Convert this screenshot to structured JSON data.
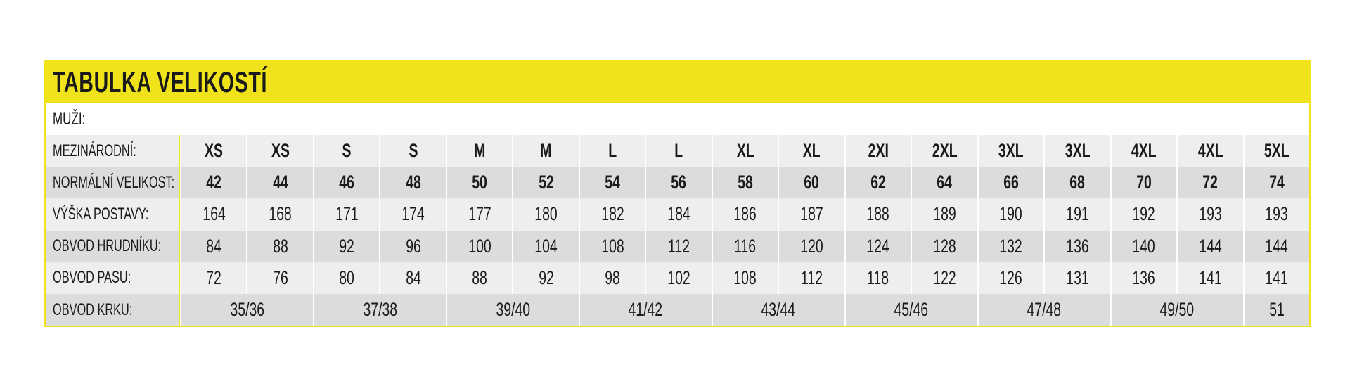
{
  "title": "TABULKA VELIKOSTÍ",
  "section": "MUŽI:",
  "colors": {
    "accent": "#f0e31c",
    "row_light": "#edeeee",
    "row_dark": "#dcdcdc"
  },
  "rows": [
    {
      "label": "MEZINÁRODNÍ:",
      "bold": true,
      "shade": "light",
      "span": 1,
      "values": [
        "XS",
        "XS",
        "S",
        "S",
        "M",
        "M",
        "L",
        "L",
        "XL",
        "XL",
        "2XI",
        "2XL",
        "3XL",
        "3XL",
        "4XL",
        "4XL",
        "5XL"
      ]
    },
    {
      "label": "NORMÁLNÍ VELIKOST:",
      "bold": true,
      "shade": "dark",
      "span": 1,
      "values": [
        "42",
        "44",
        "46",
        "48",
        "50",
        "52",
        "54",
        "56",
        "58",
        "60",
        "62",
        "64",
        "66",
        "68",
        "70",
        "72",
        "74"
      ]
    },
    {
      "label": "VÝŠKA POSTAVY:",
      "bold": false,
      "shade": "light",
      "span": 1,
      "values": [
        "164",
        "168",
        "171",
        "174",
        "177",
        "180",
        "182",
        "184",
        "186",
        "187",
        "188",
        "189",
        "190",
        "191",
        "192",
        "193",
        "193"
      ]
    },
    {
      "label": "OBVOD HRUDNÍKU:",
      "bold": false,
      "shade": "dark",
      "span": 1,
      "values": [
        "84",
        "88",
        "92",
        "96",
        "100",
        "104",
        "108",
        "112",
        "116",
        "120",
        "124",
        "128",
        "132",
        "136",
        "140",
        "144",
        "144"
      ]
    },
    {
      "label": "OBVOD PASU:",
      "bold": false,
      "shade": "light",
      "span": 1,
      "values": [
        "72",
        "76",
        "80",
        "84",
        "88",
        "92",
        "98",
        "102",
        "108",
        "112",
        "118",
        "122",
        "126",
        "131",
        "136",
        "141",
        "141"
      ]
    },
    {
      "label": "OBVOD KRKU:",
      "bold": false,
      "shade": "dark",
      "span": 2,
      "values": [
        "35/36",
        "37/38",
        "39/40",
        "41/42",
        "43/44",
        "45/46",
        "47/48",
        "49/50",
        "51"
      ]
    }
  ]
}
